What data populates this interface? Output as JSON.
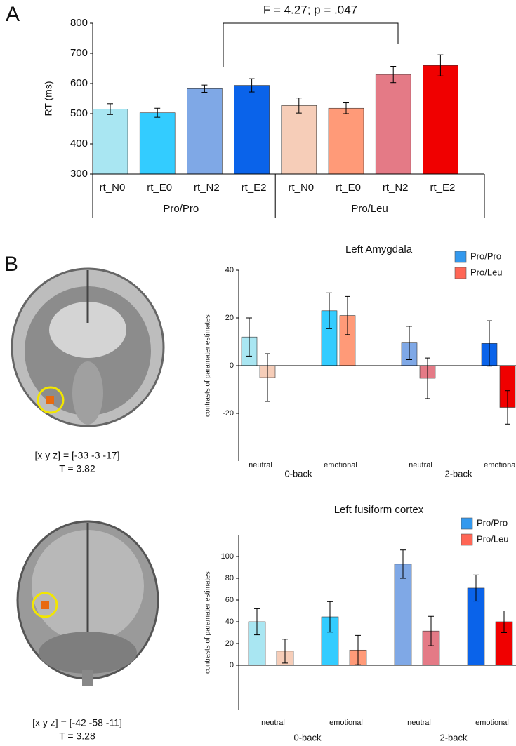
{
  "panel_labels": [
    "A",
    "B"
  ],
  "brain_images": [
    {
      "coords": "[x y z] = [-33 -3 -17]",
      "stat": "T = 3.82"
    },
    {
      "coords": "[x y z] = [-42 -58 -11]",
      "stat": "T = 3.28"
    }
  ],
  "chart_data": [
    {
      "type": "bar",
      "y_label": "RT  (ms)",
      "annotation": "F =  4.27; p = .047",
      "categories": [
        "rt_N0",
        "rt_E0",
        "rt_N2",
        "rt_E2",
        "rt_N0",
        "rt_E0",
        "rt_N2",
        "rt_E2"
      ],
      "groups": [
        "Pro/Pro",
        "Pro/Leu"
      ],
      "values": [
        515,
        503,
        583,
        594,
        527,
        518,
        630,
        660
      ],
      "errors": [
        18,
        15,
        12,
        22,
        25,
        18,
        27,
        35
      ],
      "colors": [
        "#a9e6f2",
        "#33ccff",
        "#7fa8e6",
        "#0a63ea",
        "#f6cdb8",
        "#ff9a78",
        "#e47a86",
        "#f00000"
      ],
      "ylim": [
        300,
        800
      ],
      "yticks": [
        300,
        400,
        500,
        600,
        700,
        800
      ]
    },
    {
      "type": "bar",
      "title": "Left Amygdala",
      "y_label": "contrasts of paramater estimates",
      "categories": [
        "neutral",
        "emotional",
        "neutral",
        "emotional"
      ],
      "groups": [
        "0-back",
        "2-back"
      ],
      "series": [
        {
          "name": "Pro/Pro",
          "color": "#3399ee",
          "colors": [
            "#a9e6f2",
            "#33ccff",
            "#7fa8e6",
            "#0a63ea"
          ],
          "values": [
            12,
            23,
            9.5,
            9.3
          ],
          "errors": [
            8,
            7.5,
            7,
            9.5
          ]
        },
        {
          "name": "Pro/Leu",
          "color": "#ff6655",
          "colors": [
            "#f6cdb8",
            "#ff9a78",
            "#e47a86",
            "#f00000"
          ],
          "values": [
            -5,
            21,
            -5.3,
            -17.5
          ],
          "errors": [
            10,
            8,
            8.5,
            7
          ]
        }
      ],
      "ylim": [
        -40,
        40
      ],
      "yticks": [
        -20,
        0,
        20,
        40
      ]
    },
    {
      "type": "bar",
      "title": "Left fusiform cortex",
      "y_label": "contrasts of paramater estimates",
      "categories": [
        "neutral",
        "emotional",
        "neutral",
        "emotional"
      ],
      "groups": [
        "0-back",
        "2-back"
      ],
      "series": [
        {
          "name": "Pro/Pro",
          "color": "#3399ee",
          "colors": [
            "#a9e6f2",
            "#33ccff",
            "#7fa8e6",
            "#0a63ea"
          ],
          "values": [
            40,
            44.5,
            93,
            71
          ],
          "errors": [
            12,
            14,
            13,
            12
          ]
        },
        {
          "name": "Pro/Leu",
          "color": "#ff6655",
          "colors": [
            "#f6cdb8",
            "#ff9a78",
            "#e47a86",
            "#f00000"
          ],
          "values": [
            13,
            14,
            31.5,
            40
          ],
          "errors": [
            11,
            13.5,
            13.5,
            10
          ]
        }
      ],
      "ylim": [
        0,
        120
      ],
      "yticks": [
        0,
        20,
        40,
        60,
        80,
        100
      ]
    }
  ]
}
